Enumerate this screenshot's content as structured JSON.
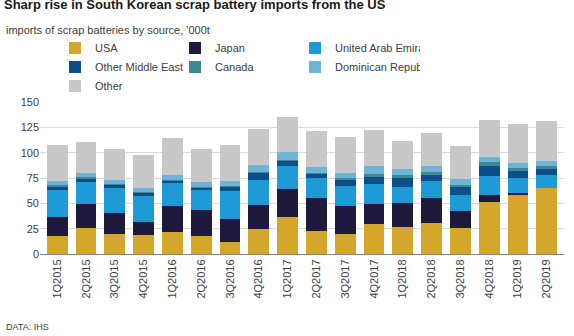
{
  "chart_data": {
    "type": "bar",
    "title": "Sharp rise in South Korean scrap battery imports from the US",
    "subtitle": "imports of scrap batteries by source, '000t",
    "annotations": [
      "DATA: IHS"
    ],
    "categories": [
      "1Q2015",
      "2Q2015",
      "3Q2015",
      "4Q2015",
      "1Q2016",
      "2Q2016",
      "3Q2016",
      "4Q2016",
      "1Q2017",
      "2Q2017",
      "3Q2017",
      "4Q2017",
      "1Q2018",
      "2Q2018",
      "3Q2018",
      "4Q2018",
      "1Q2019",
      "2Q2019"
    ],
    "series": [
      {
        "name": "USA",
        "color": "#D4A72C",
        "values": [
          18,
          26,
          20,
          19,
          22,
          18,
          12,
          25,
          37,
          23,
          20,
          30,
          27,
          31,
          26,
          51,
          58,
          65
        ]
      },
      {
        "name": "Japan",
        "color": "#1F1A3D",
        "values": [
          19,
          23,
          20,
          13,
          25,
          25,
          23,
          23,
          27,
          32,
          27,
          19,
          23,
          24,
          16,
          7,
          2,
          0
        ]
      },
      {
        "name": "United Arab Emirates",
        "color": "#1E9AD6",
        "values": [
          26,
          22,
          25,
          25,
          23,
          20,
          27,
          25,
          23,
          20,
          20,
          20,
          16,
          17,
          16,
          19,
          15,
          13
        ]
      },
      {
        "name": "Other Middle East",
        "color": "#0B4E8A",
        "values": [
          3,
          3,
          3,
          3,
          2,
          2,
          4,
          7,
          5,
          4,
          6,
          7,
          9,
          6,
          8,
          10,
          7,
          6
        ]
      },
      {
        "name": "Canada",
        "color": "#3C8A8E",
        "values": [
          2,
          2,
          1,
          1,
          1,
          1,
          1,
          1,
          1,
          1,
          2,
          3,
          3,
          3,
          2,
          4,
          3,
          3
        ]
      },
      {
        "name": "Dominican Republic",
        "color": "#6FB3D9",
        "values": [
          4,
          4,
          4,
          4,
          5,
          5,
          5,
          7,
          8,
          6,
          5,
          8,
          6,
          6,
          6,
          5,
          5,
          5
        ]
      },
      {
        "name": "Other",
        "color": "#C8C8C8",
        "values": [
          36,
          31,
          31,
          33,
          36,
          33,
          36,
          35,
          34,
          35,
          35,
          35,
          28,
          32,
          33,
          36,
          38,
          39
        ]
      }
    ],
    "ylim": [
      0,
      150
    ],
    "yticks": [
      0,
      25,
      50,
      75,
      100,
      125,
      150
    ],
    "stacked": true,
    "grid": true,
    "legend": "top"
  }
}
